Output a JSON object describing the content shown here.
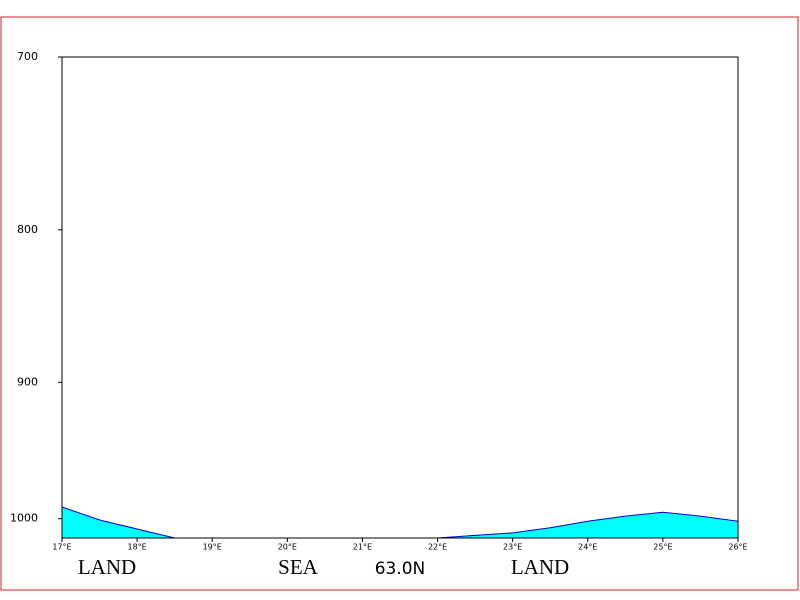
{
  "chart_data": {
    "type": "area",
    "x": [
      17,
      17.5,
      18,
      18.5,
      19,
      19.5,
      20,
      20.5,
      21,
      21.5,
      22,
      22.5,
      23,
      23.5,
      24,
      24.5,
      25,
      25.5,
      26
    ],
    "values": [
      991,
      1001,
      1008,
      1015,
      1015,
      1015,
      1015,
      1015,
      1015,
      1015,
      1015,
      1013,
      1011,
      1007,
      1002,
      998,
      995,
      998,
      1002
    ],
    "color": "#00ffff",
    "line_color": "#0000cc",
    "xlim": [
      17,
      26
    ],
    "xticks": [
      {
        "value": 17,
        "label": "17°E"
      },
      {
        "value": 18,
        "label": "18°E"
      },
      {
        "value": 19,
        "label": "19°E"
      },
      {
        "value": 20,
        "label": "20°E"
      },
      {
        "value": 21,
        "label": "21°E"
      },
      {
        "value": 22,
        "label": "22°E"
      },
      {
        "value": 23,
        "label": "23°E"
      },
      {
        "value": 24,
        "label": "24°E"
      },
      {
        "value": 25,
        "label": "25°E"
      },
      {
        "value": 26,
        "label": "26°E"
      }
    ],
    "ylim": [
      700,
      1015
    ],
    "yticks": [
      700,
      800,
      900,
      1000
    ],
    "ylog": true,
    "annotations": [
      "LAND",
      "SEA",
      "63.0N",
      "LAND"
    ]
  }
}
